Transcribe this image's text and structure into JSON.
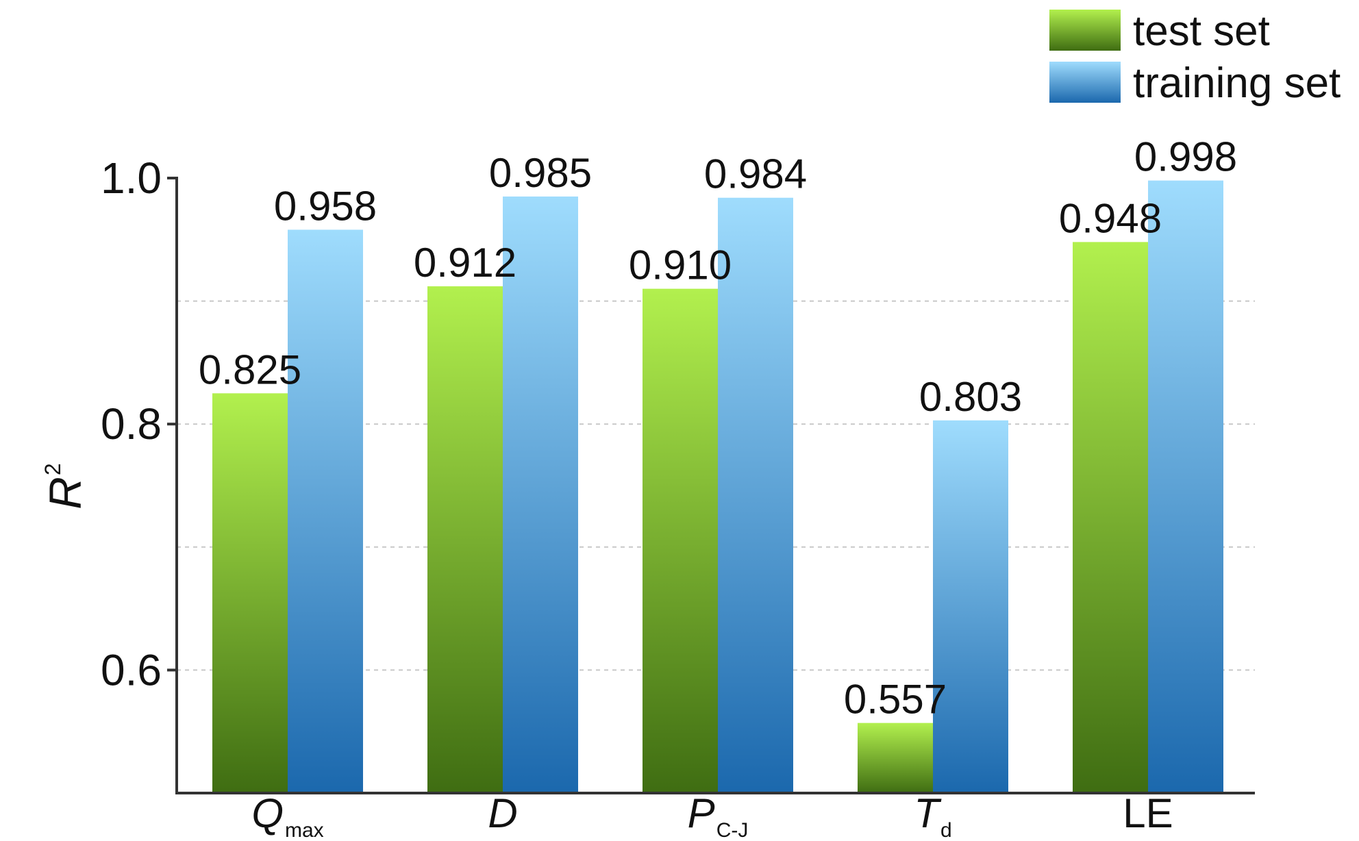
{
  "chart_data": {
    "type": "bar",
    "categories": [
      {
        "main": "Q",
        "sub": "max",
        "italic": true
      },
      {
        "main": "D",
        "sub": "",
        "italic": true
      },
      {
        "main": "P",
        "sub": "C-J",
        "italic": true
      },
      {
        "main": "T",
        "sub": "d",
        "italic": true
      },
      {
        "main": "LE",
        "sub": "",
        "italic": false
      }
    ],
    "series": [
      {
        "name": "test set",
        "values": [
          0.825,
          0.912,
          0.91,
          0.557,
          0.948
        ],
        "labels": [
          "0.825",
          "0.912",
          "0.910",
          "0.557",
          "0.948"
        ],
        "color_top": "#b2f04e",
        "color_bottom": "#3f6d12"
      },
      {
        "name": "training set",
        "values": [
          0.958,
          0.985,
          0.984,
          0.803,
          0.998
        ],
        "labels": [
          "0.958",
          "0.985",
          "0.984",
          "0.803",
          "0.998"
        ],
        "color_top": "#9fdcfd",
        "color_bottom": "#1b68ad"
      }
    ],
    "ylabel": {
      "main": "R",
      "sup": "2"
    },
    "xlabel": "",
    "ylim": [
      0.5,
      1.0
    ],
    "yticks": [
      {
        "value": 0.6,
        "label": "0.6"
      },
      {
        "value": 0.8,
        "label": "0.8"
      },
      {
        "value": 1.0,
        "label": "1.0"
      }
    ],
    "gridlines": [
      0.6,
      0.7,
      0.8,
      0.9
    ],
    "grid": "dashed horizontal",
    "legend": "top-right"
  }
}
